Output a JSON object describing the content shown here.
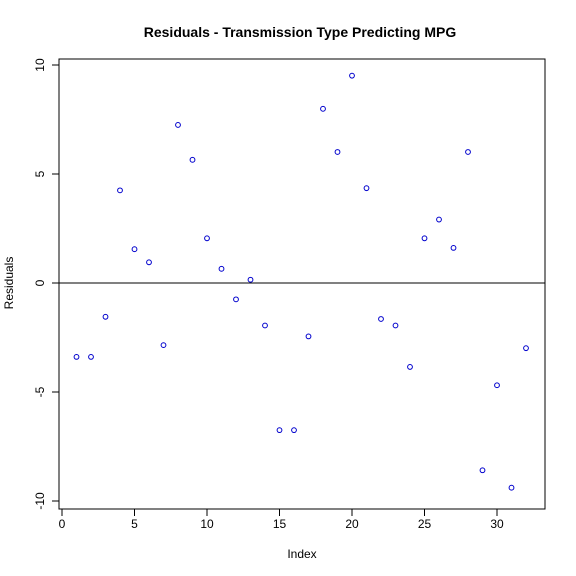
{
  "chart_data": {
    "type": "scatter",
    "title": "Residuals - Transmission Type Predicting MPG",
    "xlabel": "Index",
    "ylabel": "Residuals",
    "xlim": [
      0,
      33
    ],
    "ylim": [
      -10,
      10
    ],
    "x_ticks": [
      0,
      5,
      10,
      15,
      20,
      25,
      30
    ],
    "y_ticks": [
      -10,
      -5,
      0,
      5,
      10
    ],
    "grid": false,
    "reference_line": {
      "y": 0
    },
    "point_color": "#0000cd",
    "series": [
      {
        "x": [
          1,
          2,
          3,
          4,
          5,
          6,
          7,
          8,
          9,
          10,
          11,
          12,
          13,
          14,
          15,
          16,
          17,
          18,
          19,
          20,
          21,
          22,
          23,
          24,
          25,
          26,
          27,
          28,
          29,
          30,
          31,
          32
        ],
        "y": [
          -3.39,
          -3.39,
          -1.55,
          4.25,
          1.55,
          0.95,
          -2.85,
          7.25,
          5.65,
          2.05,
          0.65,
          -0.75,
          0.15,
          -1.95,
          -6.75,
          -6.75,
          -2.45,
          7.99,
          6.01,
          9.51,
          4.35,
          -1.65,
          -1.95,
          -3.85,
          2.05,
          2.91,
          1.61,
          6.01,
          -8.59,
          -4.69,
          -9.39,
          -2.99
        ]
      }
    ]
  }
}
